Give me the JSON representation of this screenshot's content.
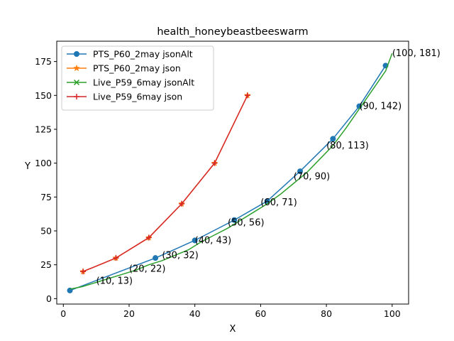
{
  "chart_data": {
    "type": "line",
    "title": "health_honeybeastbeeswarm",
    "xlabel": "X",
    "ylabel": "Y",
    "xlim": [
      -2,
      105
    ],
    "ylim": [
      -4,
      190
    ],
    "xticks": [
      0,
      20,
      40,
      60,
      80,
      100
    ],
    "yticks": [
      0,
      25,
      50,
      75,
      100,
      125,
      150,
      175
    ],
    "grid": false,
    "legend_position": "top-left",
    "series": [
      {
        "name": "PTS_P60_2may jsonAlt",
        "color": "#1f77b4",
        "marker": "circle",
        "x": [
          2,
          28,
          40,
          52,
          62,
          72,
          82,
          90,
          98
        ],
        "y": [
          6,
          30,
          43,
          58,
          72,
          94,
          118,
          142,
          172
        ]
      },
      {
        "name": "PTS_P60_2may json",
        "color": "#ff7f0e",
        "marker": "star",
        "x": [
          6,
          16,
          26,
          36,
          46,
          56
        ],
        "y": [
          20,
          30,
          45,
          70,
          100,
          150
        ]
      },
      {
        "name": "Live_P59_6may jsonAlt",
        "color": "#2ca02c",
        "marker": "x",
        "x": [
          2,
          6,
          10,
          14,
          18,
          22,
          26,
          30,
          34,
          38,
          42,
          46,
          50,
          54,
          58,
          62,
          66,
          70,
          74,
          78,
          82,
          86,
          90,
          94,
          98,
          100
        ],
        "y": [
          7,
          9,
          12,
          15,
          18,
          21,
          25,
          28,
          32,
          36,
          42,
          47,
          52,
          58,
          64,
          70,
          77,
          85,
          93,
          103,
          113,
          126,
          140,
          154,
          168,
          181
        ]
      },
      {
        "name": "Live_P59_6may json",
        "color": "#d62728",
        "marker": "plus",
        "x": [
          6,
          16,
          26,
          36,
          46,
          56
        ],
        "y": [
          20,
          30,
          45,
          70,
          100,
          150
        ]
      }
    ],
    "annotations": [
      {
        "x": 10,
        "y": 13,
        "text": "(10, 13)"
      },
      {
        "x": 20,
        "y": 22,
        "text": "(20, 22)"
      },
      {
        "x": 30,
        "y": 32,
        "text": "(30, 32)"
      },
      {
        "x": 40,
        "y": 43,
        "text": "(40, 43)"
      },
      {
        "x": 50,
        "y": 56,
        "text": "(50, 56)"
      },
      {
        "x": 60,
        "y": 71,
        "text": "(60, 71)"
      },
      {
        "x": 70,
        "y": 90,
        "text": "(70, 90)"
      },
      {
        "x": 80,
        "y": 113,
        "text": "(80, 113)"
      },
      {
        "x": 90,
        "y": 142,
        "text": "(90, 142)"
      },
      {
        "x": 100,
        "y": 181,
        "text": "(100, 181)"
      }
    ]
  }
}
